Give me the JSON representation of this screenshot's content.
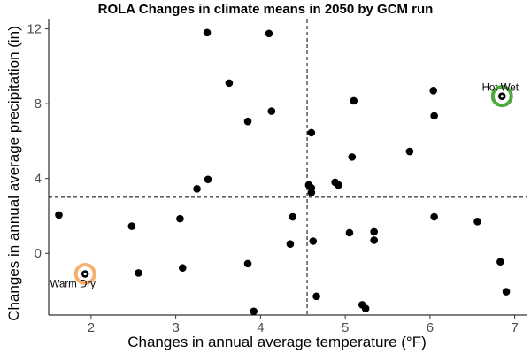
{
  "chart_data": {
    "type": "scatter",
    "title": "ROLA Changes in climate means in 2050 by GCM run",
    "xlabel": "Changes in annual average temperature (°F)",
    "ylabel": "Changes in annual average precipitation (in)",
    "xlim": [
      1.5,
      7.15
    ],
    "ylim": [
      -3.3,
      12.5
    ],
    "xticks": [
      2,
      3,
      4,
      5,
      6,
      7
    ],
    "yticks": [
      0,
      4,
      8,
      12
    ],
    "grid": false,
    "reference_lines": {
      "vertical_x": 4.55,
      "horizontal_y": 3.0
    },
    "points": [
      {
        "x": 1.62,
        "y": 2.05
      },
      {
        "x": 1.93,
        "y": -1.1
      },
      {
        "x": 2.48,
        "y": 1.45
      },
      {
        "x": 2.56,
        "y": -1.05
      },
      {
        "x": 3.05,
        "y": 1.85
      },
      {
        "x": 3.08,
        "y": -0.78
      },
      {
        "x": 3.25,
        "y": 3.45
      },
      {
        "x": 3.37,
        "y": 11.8
      },
      {
        "x": 3.38,
        "y": 3.95
      },
      {
        "x": 3.63,
        "y": 9.1
      },
      {
        "x": 3.85,
        "y": 7.05
      },
      {
        "x": 3.85,
        "y": -0.55
      },
      {
        "x": 3.92,
        "y": -3.1
      },
      {
        "x": 4.1,
        "y": 11.75
      },
      {
        "x": 4.13,
        "y": 7.6
      },
      {
        "x": 4.35,
        "y": 0.5
      },
      {
        "x": 4.38,
        "y": 1.95
      },
      {
        "x": 4.57,
        "y": 3.65
      },
      {
        "x": 4.6,
        "y": 3.5
      },
      {
        "x": 4.6,
        "y": 3.25
      },
      {
        "x": 4.6,
        "y": 6.45
      },
      {
        "x": 4.62,
        "y": 0.65
      },
      {
        "x": 4.66,
        "y": -2.3
      },
      {
        "x": 4.88,
        "y": 3.8
      },
      {
        "x": 4.92,
        "y": 3.65
      },
      {
        "x": 5.05,
        "y": 1.1
      },
      {
        "x": 5.08,
        "y": 5.15
      },
      {
        "x": 5.1,
        "y": 8.15
      },
      {
        "x": 5.2,
        "y": -2.75
      },
      {
        "x": 5.24,
        "y": -2.95
      },
      {
        "x": 5.34,
        "y": 1.15
      },
      {
        "x": 5.34,
        "y": 0.7
      },
      {
        "x": 5.76,
        "y": 5.45
      },
      {
        "x": 6.04,
        "y": 8.7
      },
      {
        "x": 6.05,
        "y": 7.35
      },
      {
        "x": 6.05,
        "y": 1.95
      },
      {
        "x": 6.56,
        "y": 1.7
      },
      {
        "x": 6.83,
        "y": -0.45
      },
      {
        "x": 6.85,
        "y": 8.4
      },
      {
        "x": 6.9,
        "y": -2.05
      }
    ],
    "highlights": [
      {
        "label": "Warm Dry",
        "x": 1.93,
        "y": -1.1,
        "color": "#F5B06E",
        "label_side": "below-left"
      },
      {
        "label": "Hot Wet",
        "x": 6.85,
        "y": 8.4,
        "color": "#4FAA3C",
        "label_side": "above"
      }
    ]
  },
  "colors": {
    "point": "#000000",
    "reference_line": "#000000",
    "axis": "#000000",
    "tick_label": "#4d4d4d"
  }
}
